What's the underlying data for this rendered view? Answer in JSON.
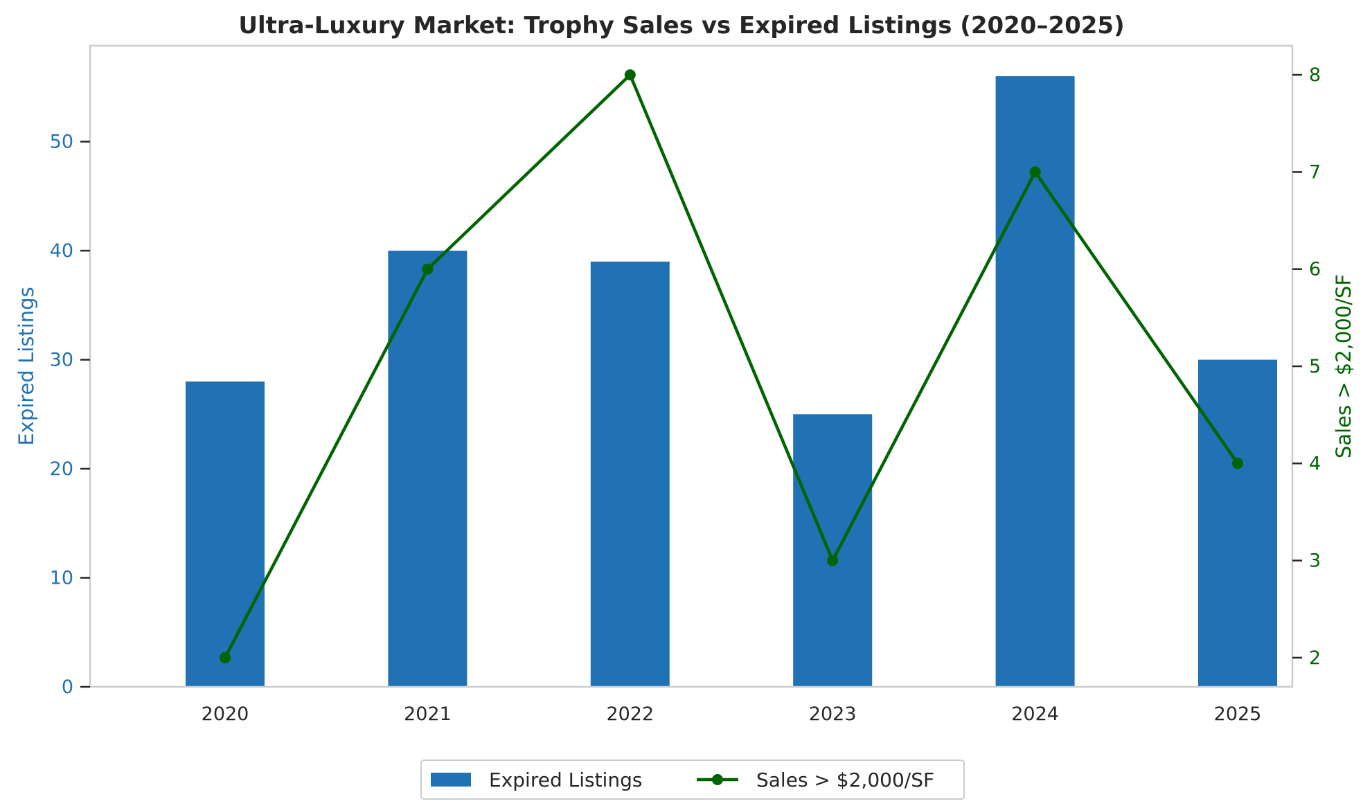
{
  "chart_data": {
    "type": "bar",
    "title": "Ultra-Luxury Market: Trophy Sales vs Expired Listings (2020–2025)",
    "categories": [
      "2020",
      "2021",
      "2022",
      "2023",
      "2024",
      "2025"
    ],
    "series": [
      {
        "name": "Expired Listings",
        "type": "bar",
        "axis": "left",
        "color": "#2171b5",
        "values": [
          28,
          40,
          39,
          25,
          56,
          30
        ]
      },
      {
        "name": "Sales > $2,000/SF",
        "type": "line",
        "axis": "right",
        "color": "#006400",
        "marker": "circle",
        "values": [
          2,
          6,
          8,
          3,
          7,
          4
        ]
      }
    ],
    "y_left": {
      "label": "Expired Listings",
      "ticks": [
        0,
        10,
        20,
        30,
        40,
        50
      ],
      "ylim": [
        0,
        58.8
      ],
      "color": "#2171b5"
    },
    "y_right": {
      "label": "Sales > $2,000/SF",
      "ticks": [
        2,
        3,
        4,
        5,
        6,
        7,
        8
      ],
      "ylim": [
        1.7,
        8.3
      ],
      "color": "#006400"
    },
    "grid": false,
    "legend": "bottom-center"
  }
}
